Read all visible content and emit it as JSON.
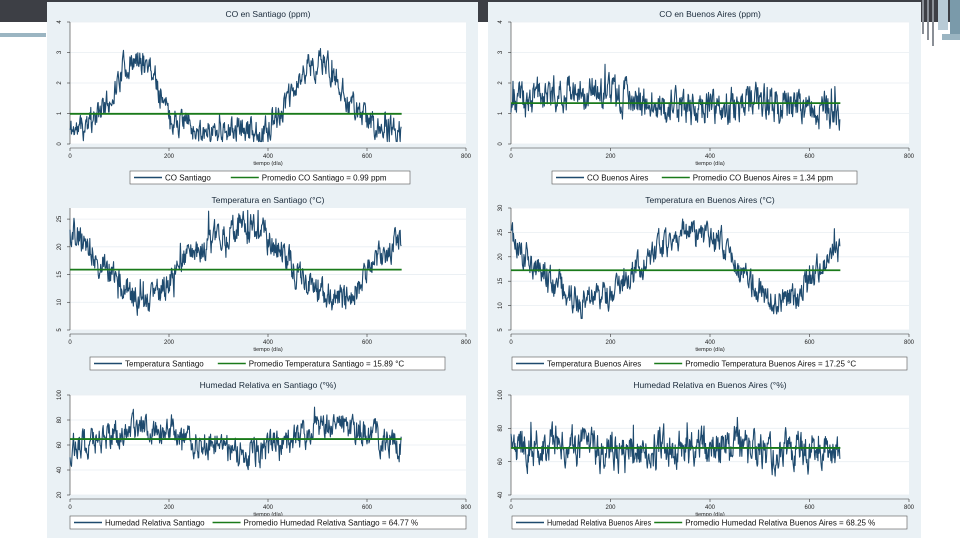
{
  "colors": {
    "series": "#1e4a6e",
    "mean": "#1a7a1a",
    "panel": "#eaf1f5",
    "plot": "#ffffff",
    "grid": "#e8eef2",
    "title_blue": "#34608a"
  },
  "chart_data": [
    {
      "id": "co_santiago",
      "type": "line",
      "title": "CO en Santiago (ppm)",
      "xlabel": "tiempo (día)",
      "xlim": [
        0,
        800
      ],
      "ylim": [
        0,
        4
      ],
      "xticks": [
        0,
        200,
        400,
        600,
        800
      ],
      "xtick_labels": [
        "0",
        "200",
        "400",
        "600",
        "800"
      ],
      "yticks": [
        0,
        1,
        2,
        3,
        4
      ],
      "ytick_labels": [
        "0",
        "1",
        "2",
        "3",
        "4"
      ],
      "n_points": 670,
      "mean": 0.99,
      "profile": {
        "x": [
          0,
          40,
          80,
          110,
          160,
          200,
          250,
          300,
          400,
          450,
          480,
          520,
          560,
          600,
          640,
          670
        ],
        "y": [
          0.45,
          0.6,
          1.4,
          2.6,
          2.7,
          0.9,
          0.55,
          0.45,
          0.45,
          1.6,
          2.6,
          2.6,
          1.5,
          0.75,
          0.45,
          0.35
        ]
      },
      "noise": 0.35,
      "seed": 11,
      "legend": [
        "CO Santiago",
        "Promedio CO Santiago = 0.99 ppm"
      ]
    },
    {
      "id": "co_ba",
      "type": "line",
      "title": "CO en Buenos Aires (ppm)",
      "xlabel": "tiempo (día)",
      "xlim": [
        0,
        800
      ],
      "ylim": [
        0,
        4
      ],
      "xticks": [
        0,
        200,
        400,
        600,
        800
      ],
      "xtick_labels": [
        "0",
        "200",
        "400",
        "600",
        "800"
      ],
      "yticks": [
        0,
        1,
        2,
        3,
        4
      ],
      "ytick_labels": [
        "0",
        "1",
        "2",
        "3",
        "4"
      ],
      "n_points": 662,
      "mean": 1.34,
      "profile": {
        "x": [
          0,
          60,
          120,
          180,
          240,
          300,
          360,
          400,
          480,
          560,
          662
        ],
        "y": [
          1.4,
          1.6,
          1.8,
          1.7,
          1.5,
          1.3,
          1.1,
          1.2,
          1.4,
          1.1,
          1.1
        ]
      },
      "noise": 0.45,
      "seed": 23,
      "legend": [
        "CO Buenos Aires",
        "Promedio CO Buenos Aires = 1.34 ppm"
      ]
    },
    {
      "id": "temp_santiago",
      "type": "line",
      "title": "Temperatura en Santiago (°C)",
      "xlabel": "tiempo (día)",
      "xlim": [
        0,
        800
      ],
      "ylim": [
        5,
        27
      ],
      "xticks": [
        0,
        200,
        400,
        600,
        800
      ],
      "xtick_labels": [
        "0",
        "200",
        "400",
        "600",
        "800"
      ],
      "yticks": [
        5,
        10,
        15,
        20,
        25
      ],
      "ytick_labels": [
        "5",
        "10",
        "15",
        "20",
        "25"
      ],
      "n_points": 670,
      "mean": 15.89,
      "profile": {
        "x": [
          0,
          30,
          80,
          130,
          170,
          230,
          280,
          340,
          380,
          420,
          470,
          520,
          560,
          610,
          670
        ],
        "y": [
          23,
          21,
          15,
          11,
          10,
          17,
          21,
          23,
          23,
          20,
          14,
          11,
          10,
          17,
          22
        ]
      },
      "noise": 2.2,
      "seed": 37,
      "legend": [
        "Temperatura Santiago",
        "Promedio Temperatura Santiago = 15.89 °C"
      ]
    },
    {
      "id": "temp_ba",
      "type": "line",
      "title": "Temperatura en Buenos Aires (°C)",
      "xlabel": "tiempo (día)",
      "xlim": [
        0,
        800
      ],
      "ylim": [
        5,
        30
      ],
      "xticks": [
        0,
        200,
        400,
        600,
        800
      ],
      "xtick_labels": [
        "0",
        "200",
        "400",
        "600",
        "800"
      ],
      "yticks": [
        5,
        10,
        15,
        20,
        25,
        30
      ],
      "ytick_labels": [
        "5",
        "10",
        "15",
        "20",
        "25",
        "30"
      ],
      "n_points": 662,
      "mean": 17.25,
      "profile": {
        "x": [
          0,
          30,
          80,
          140,
          180,
          240,
          300,
          360,
          420,
          460,
          520,
          580,
          620,
          662
        ],
        "y": [
          24,
          20,
          15,
          11,
          11,
          16,
          22,
          25,
          24,
          16,
          11,
          12,
          18,
          23
        ]
      },
      "noise": 2.4,
      "seed": 41,
      "legend": [
        "Temperatura Buenos Aires",
        "Promedio Temperatura Buenos Aires = 17.25 °C"
      ]
    },
    {
      "id": "hum_santiago",
      "type": "line",
      "title": "Humedad Relativa en Santiago (°%)",
      "xlabel": "tiempo (día)",
      "xlim": [
        0,
        800
      ],
      "ylim": [
        20,
        100
      ],
      "xticks": [
        0,
        200,
        400,
        600,
        800
      ],
      "xtick_labels": [
        "0",
        "200",
        "400",
        "600",
        "800"
      ],
      "yticks": [
        20,
        40,
        60,
        80,
        100
      ],
      "ytick_labels": [
        "20",
        "40",
        "60",
        "80",
        "100"
      ],
      "n_points": 670,
      "mean": 64.77,
      "profile": {
        "x": [
          0,
          60,
          140,
          220,
          300,
          360,
          420,
          480,
          560,
          620,
          670
        ],
        "y": [
          58,
          66,
          74,
          68,
          58,
          52,
          60,
          70,
          74,
          66,
          60
        ]
      },
      "noise": 9,
      "seed": 53,
      "legend": [
        "Humedad Relativa Santiago",
        "Promedio Humedad Relativa Santiago = 64.77 %"
      ]
    },
    {
      "id": "hum_ba",
      "type": "line",
      "title": "Humedad Relativa en Buenos Aires (°%)",
      "xlabel": "tiempo (día)",
      "xlim": [
        0,
        800
      ],
      "ylim": [
        40,
        100
      ],
      "xticks": [
        0,
        200,
        400,
        600,
        800
      ],
      "xtick_labels": [
        "0",
        "200",
        "400",
        "600",
        "800"
      ],
      "yticks": [
        40,
        60,
        80,
        100
      ],
      "ytick_labels": [
        "40",
        "60",
        "80",
        "100"
      ],
      "n_points": 662,
      "mean": 68.25,
      "profile": {
        "x": [
          0,
          100,
          200,
          300,
          400,
          500,
          600,
          662
        ],
        "y": [
          68,
          70,
          66,
          68,
          70,
          66,
          68,
          67
        ]
      },
      "noise": 9,
      "seed": 67,
      "legend": [
        "Humedad Relativa Buenos Aires",
        "Promedio Humedad Relativa Buenos Aires = 68.25 %"
      ]
    }
  ]
}
